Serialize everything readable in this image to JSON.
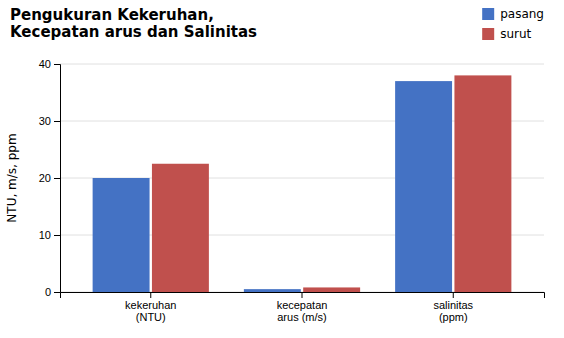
{
  "chart_data": {
    "type": "bar",
    "title": "Pengukuran Kekeruhan,\nKecepatan arus dan Salinitas",
    "ylabel": "NTU, m/s, ppm",
    "categories": [
      "kekeruhan\n(NTU)",
      "kecepatan\narus (m/s)",
      "salinitas\n(ppm)"
    ],
    "series": [
      {
        "name": "pasang",
        "color": "#4472C4",
        "values": [
          20.0,
          0.5,
          37.0
        ]
      },
      {
        "name": "surut",
        "color": "#C0504D",
        "values": [
          22.5,
          0.8,
          38.0
        ]
      }
    ],
    "ylim": [
      0,
      40
    ],
    "yticks": [
      0,
      10,
      20,
      30,
      40
    ],
    "grid": true,
    "legend": "upper right"
  }
}
